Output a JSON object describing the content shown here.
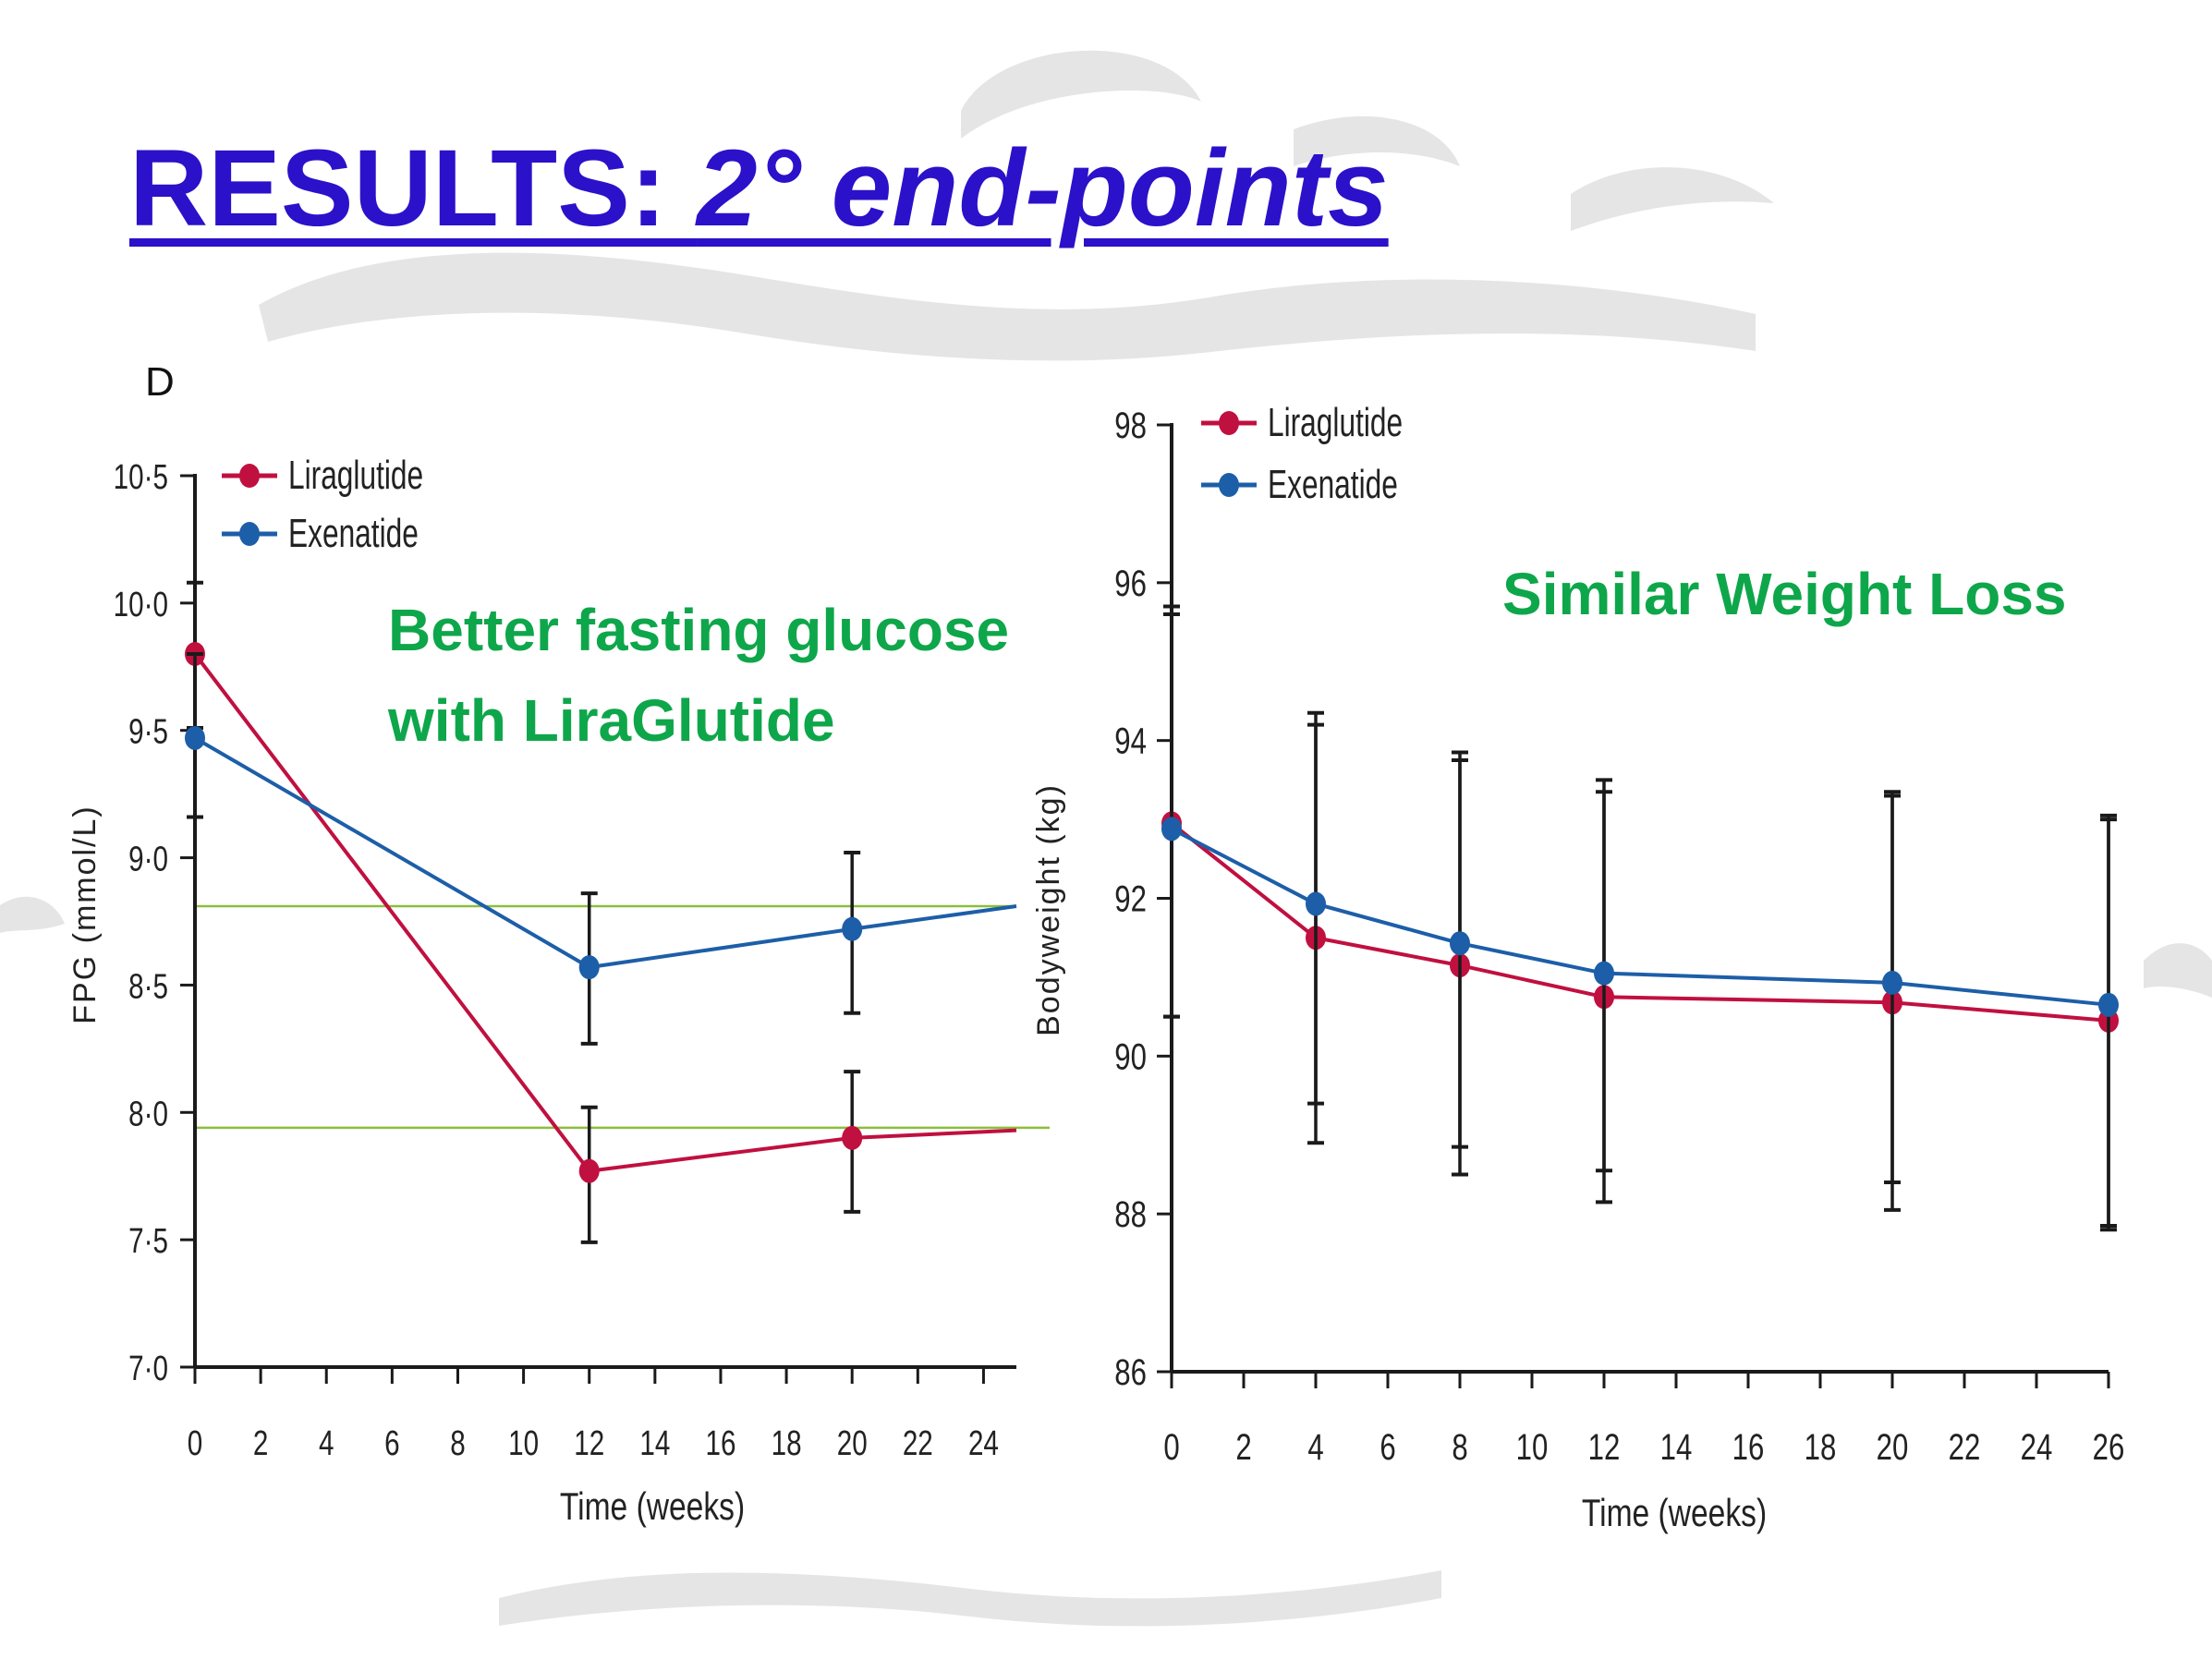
{
  "slide": {
    "title_prefix": "RESULTS:  ",
    "title_emphasis": "2° end-points"
  },
  "annotations": {
    "left": [
      "Better fasting glucose",
      "with LiraGlutide"
    ],
    "right": "Similar Weight Loss"
  },
  "colors": {
    "title": "#2b11c9",
    "annotation": "#0ea64a",
    "liraglutide": "#c0103f",
    "exenatide": "#1d5ea8",
    "reference_lines": "#8bbf3c",
    "axis": "#1a1a1a"
  },
  "chart_data": [
    {
      "type": "line",
      "panel_label": "D",
      "xlabel": "Time (weeks)",
      "ylabel": "FPG (mmol/L)",
      "xlim": [
        0,
        25
      ],
      "ylim": [
        7.0,
        10.5
      ],
      "x_ticks": [
        0,
        2,
        4,
        6,
        8,
        10,
        12,
        14,
        16,
        18,
        20,
        22,
        24
      ],
      "x_tick_labels": [
        "0",
        "2",
        "4",
        "6",
        "8",
        "10",
        "12",
        "14",
        "16",
        "18",
        "20",
        "22",
        "24"
      ],
      "y_ticks": [
        7.0,
        7.5,
        8.0,
        8.5,
        9.0,
        9.5,
        10.0,
        10.5
      ],
      "y_tick_labels": [
        "7·0",
        "7·5",
        "8·0",
        "8·5",
        "9·0",
        "9·5",
        "10·0",
        "10·5"
      ],
      "legend": "top-left",
      "reference_lines_y": [
        8.81,
        7.94
      ],
      "series": [
        {
          "name": "Liraglutide",
          "x": [
            0,
            12,
            20,
            25
          ],
          "y": [
            9.8,
            7.77,
            7.9,
            7.93
          ],
          "markers": [
            true,
            true,
            true,
            false
          ],
          "error": [
            [
              9.51,
              10.08
            ],
            [
              7.49,
              8.02
            ],
            [
              7.61,
              8.16
            ],
            null
          ]
        },
        {
          "name": "Exenatide",
          "x": [
            0,
            12,
            20,
            25
          ],
          "y": [
            9.47,
            8.57,
            8.72,
            8.81
          ],
          "markers": [
            true,
            true,
            true,
            false
          ],
          "error": [
            [
              9.16,
              9.8
            ],
            [
              8.27,
              8.86
            ],
            [
              8.39,
              9.02
            ],
            null
          ]
        }
      ]
    },
    {
      "type": "line",
      "xlabel": "Time (weeks)",
      "ylabel": "Bodyweight (kg)",
      "xlim": [
        0,
        26
      ],
      "ylim": [
        86,
        98
      ],
      "x_ticks": [
        0,
        2,
        4,
        6,
        8,
        10,
        12,
        14,
        16,
        18,
        20,
        22,
        24,
        26
      ],
      "x_tick_labels": [
        "0",
        "2",
        "4",
        "6",
        "8",
        "10",
        "12",
        "14",
        "16",
        "18",
        "20",
        "22",
        "24",
        "26"
      ],
      "y_ticks": [
        86,
        88,
        90,
        92,
        94,
        96,
        98
      ],
      "y_tick_labels": [
        "86",
        "88",
        "90",
        "92",
        "94",
        "96",
        "98"
      ],
      "legend": "top-left",
      "series": [
        {
          "name": "Liraglutide",
          "x": [
            0,
            4,
            8,
            12,
            20,
            26
          ],
          "y": [
            92.95,
            91.5,
            91.15,
            90.75,
            90.68,
            90.45
          ],
          "error": [
            [
              90.5,
              95.6
            ],
            [
              89.4,
              94.2
            ],
            [
              88.85,
              93.75
            ],
            [
              88.55,
              93.35
            ],
            [
              88.4,
              93.3
            ],
            [
              87.85,
              93.0
            ]
          ]
        },
        {
          "name": "Exenatide",
          "x": [
            0,
            4,
            8,
            12,
            20,
            26
          ],
          "y": [
            92.88,
            91.93,
            91.43,
            91.05,
            90.93,
            90.65
          ],
          "error": [
            [
              90.5,
              95.7
            ],
            [
              88.9,
              94.35
            ],
            [
              88.5,
              93.85
            ],
            [
              88.15,
              93.5
            ],
            [
              88.05,
              93.35
            ],
            [
              87.8,
              93.05
            ]
          ]
        }
      ]
    }
  ]
}
